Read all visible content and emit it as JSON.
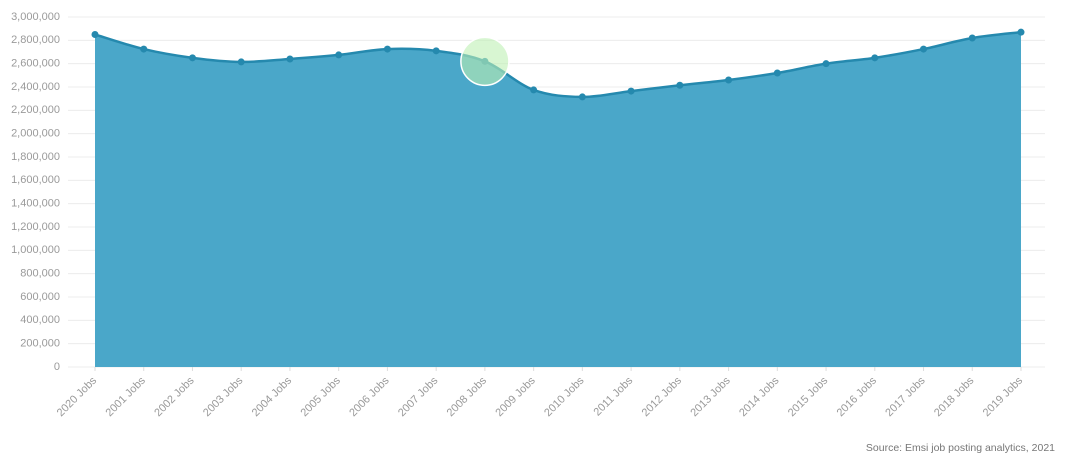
{
  "chart_data": {
    "type": "area",
    "source": "Source: Emsi job posting analytics, 2021",
    "categories": [
      "2020 Jobs",
      "2001 Jobs",
      "2002 Jobs",
      "2003 Jobs",
      "2004 Jobs",
      "2005 Jobs",
      "2006 Jobs",
      "2007 Jobs",
      "2008 Jobs",
      "2009 Jobs",
      "2010 Jobs",
      "2011 Jobs",
      "2012 Jobs",
      "2013 Jobs",
      "2014 Jobs",
      "2015 Jobs",
      "2016 Jobs",
      "2017 Jobs",
      "2018 Jobs",
      "2019 Jobs"
    ],
    "values": [
      2850000,
      2725000,
      2650000,
      2615000,
      2640000,
      2675000,
      2725000,
      2710000,
      2620000,
      2375000,
      2315000,
      2365000,
      2415000,
      2460000,
      2520000,
      2600000,
      2650000,
      2725000,
      2820000,
      2870000
    ],
    "color": "#4aa7c9",
    "line_color": "#2589ae",
    "ylim": [
      0,
      3000000
    ],
    "yticks": [
      0,
      {
        "value": 200000,
        "label": "200,000"
      },
      {
        "value": 400000,
        "label": "400,000"
      },
      {
        "value": 600000,
        "label": "600,000"
      },
      {
        "value": 800000,
        "label": "800,000"
      },
      {
        "value": 1000000,
        "label": "1,000,000"
      },
      {
        "value": 1200000,
        "label": "1,200,000"
      },
      {
        "value": 1400000,
        "label": "1,400,000"
      },
      {
        "value": 1600000,
        "label": "1,600,000"
      },
      {
        "value": 1800000,
        "label": "1,800,000"
      },
      {
        "value": 2000000,
        "label": "2,000,000"
      },
      {
        "value": 2200000,
        "label": "2,200,000"
      },
      {
        "value": 2400000,
        "label": "2,400,000"
      },
      {
        "value": 2600000,
        "label": "2,600,000"
      },
      {
        "value": 2800000,
        "label": "2,800,000"
      },
      {
        "value": 3000000,
        "label": "3,000,000"
      }
    ],
    "grid": true
  }
}
